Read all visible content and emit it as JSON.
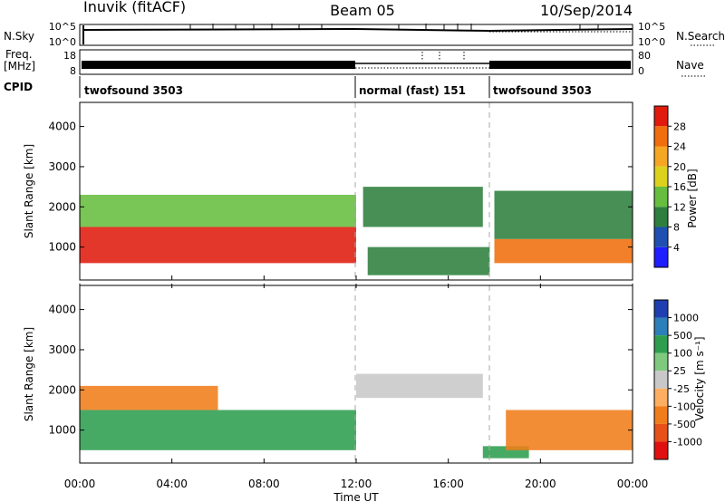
{
  "header": {
    "station": "Inuvik (fitACF)",
    "beam": "Beam 05",
    "date": "10/Sep/2014"
  },
  "top_panels": {
    "nsky": {
      "label": "N.Sky",
      "right_label": "N.Search",
      "left_ticks": [
        "10^5",
        "10^0"
      ],
      "right_ticks": [
        "10^5",
        "10^0"
      ]
    },
    "freq": {
      "label_line1": "Freq.",
      "label_line2": "[MHz]",
      "left_ticks": [
        "18",
        "8"
      ],
      "right_ticks": [
        "80",
        "0"
      ],
      "right_label": "Nave"
    },
    "cpid": {
      "label": "CPID",
      "segments": [
        {
          "name": "twofsound 3503",
          "start_hour": 0,
          "end_hour": 12
        },
        {
          "name": "normal (fast) 151",
          "start_hour": 12,
          "end_hour": 18
        },
        {
          "name": "twofsound 3503",
          "start_hour": 18,
          "end_hour": 24
        }
      ]
    }
  },
  "axes": {
    "x_ticks": [
      "00:00",
      "04:00",
      "08:00",
      "12:00",
      "16:00",
      "20:00",
      "00:00"
    ],
    "x_label": "Time UT",
    "y_label": "Slant Range [km]",
    "y_ticks": [
      "1000",
      "2000",
      "3000",
      "4000"
    ]
  },
  "chart_data": [
    {
      "type": "heatmap",
      "title": "",
      "xlabel": "",
      "ylabel": "Slant Range [km]",
      "xlim_hours": [
        0,
        24
      ],
      "ylim": [
        180,
        4600
      ],
      "yticks": [
        1000,
        2000,
        3000,
        4000
      ],
      "colorbar": {
        "label": "Power [dB]",
        "tick_labels": [
          "4",
          "8",
          "12",
          "16",
          "20",
          "24",
          "28"
        ],
        "range": [
          0,
          30
        ],
        "colors": [
          "#1e1eff",
          "#1f4fb0",
          "#2e7f3e",
          "#66bd3e",
          "#dcd21e",
          "#f5a623",
          "#f06e0d",
          "#e01b0e"
        ]
      },
      "regions": [
        {
          "start_hour": 0.0,
          "end_hour": 12.0,
          "range_min": 600,
          "range_max": 1500,
          "level": 27
        },
        {
          "start_hour": 0.0,
          "end_hour": 12.0,
          "range_min": 1500,
          "range_max": 2300,
          "level": 14
        },
        {
          "start_hour": 12.3,
          "end_hour": 17.5,
          "range_min": 1500,
          "range_max": 2500,
          "level": 10
        },
        {
          "start_hour": 12.5,
          "end_hour": 17.8,
          "range_min": 300,
          "range_max": 1000,
          "level": 8
        },
        {
          "start_hour": 18.0,
          "end_hour": 24.0,
          "range_min": 600,
          "range_max": 1200,
          "level": 26
        },
        {
          "start_hour": 18.0,
          "end_hour": 24.0,
          "range_min": 1200,
          "range_max": 2400,
          "level": 8
        }
      ]
    },
    {
      "type": "heatmap",
      "title": "",
      "xlabel": "Time UT",
      "ylabel": "Slant Range [km]",
      "xlim_hours": [
        0,
        24
      ],
      "ylim": [
        180,
        4600
      ],
      "yticks": [
        1000,
        2000,
        3000,
        4000
      ],
      "colorbar": {
        "label": "Velocity [m s⁻¹]",
        "tick_labels": [
          "1000",
          "500",
          "100",
          "25",
          "-25",
          "-100",
          "-500",
          "-1000"
        ],
        "colors": [
          "#1f3fb0",
          "#2c7fb8",
          "#2e9e4e",
          "#7fc97f",
          "#c8c8c8",
          "#fdae61",
          "#f07d1a",
          "#e8501a",
          "#e01010"
        ]
      },
      "regions": [
        {
          "start_hour": 0.0,
          "end_hour": 12.0,
          "range_min": 500,
          "range_max": 1500,
          "velocity": 150
        },
        {
          "start_hour": 0.0,
          "end_hour": 6.0,
          "range_min": 1500,
          "range_max": 2100,
          "velocity": -200
        },
        {
          "start_hour": 12.0,
          "end_hour": 17.5,
          "range_min": 1800,
          "range_max": 2400,
          "velocity": 0
        },
        {
          "start_hour": 17.5,
          "end_hour": 19.5,
          "range_min": 300,
          "range_max": 600,
          "velocity": 150
        },
        {
          "start_hour": 18.5,
          "end_hour": 24.0,
          "range_min": 500,
          "range_max": 1500,
          "velocity": -300
        }
      ]
    }
  ]
}
